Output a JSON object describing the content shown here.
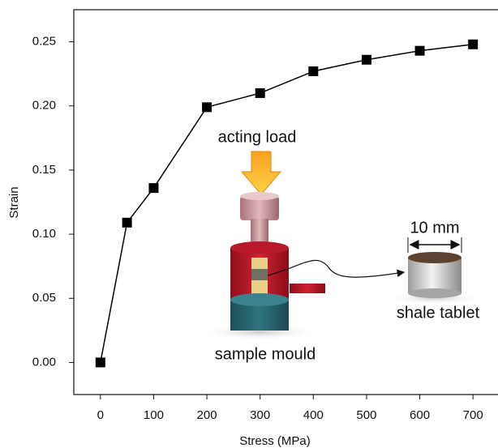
{
  "chart_data": {
    "type": "line",
    "x_label": "Stress (MPa)",
    "y_label": "Strain",
    "x": [
      0,
      50,
      100,
      200,
      300,
      400,
      500,
      600,
      700
    ],
    "series": [
      {
        "color": "#000000",
        "values": [
          0,
          0.109,
          0.136,
          0.199,
          0.21,
          0.227,
          0.236,
          0.243,
          0.248
        ]
      }
    ],
    "xlim": [
      -50,
      750
    ],
    "ylim": [
      -0.025,
      0.275
    ],
    "xticks": [
      0,
      100,
      200,
      300,
      400,
      500,
      600,
      700
    ],
    "yticks": [
      {
        "value": 0,
        "label": "0.00"
      },
      {
        "value": 0.05,
        "label": "0.05"
      },
      {
        "value": 0.1,
        "label": "0.10"
      },
      {
        "value": 0.15,
        "label": "0.15"
      },
      {
        "value": 0.2,
        "label": "0.20"
      },
      {
        "value": 0.25,
        "label": "0.25"
      }
    ],
    "annotations": {
      "load": "acting load",
      "size": "10 mm",
      "tablet": "shale tablet",
      "mould": "sample mould"
    }
  }
}
